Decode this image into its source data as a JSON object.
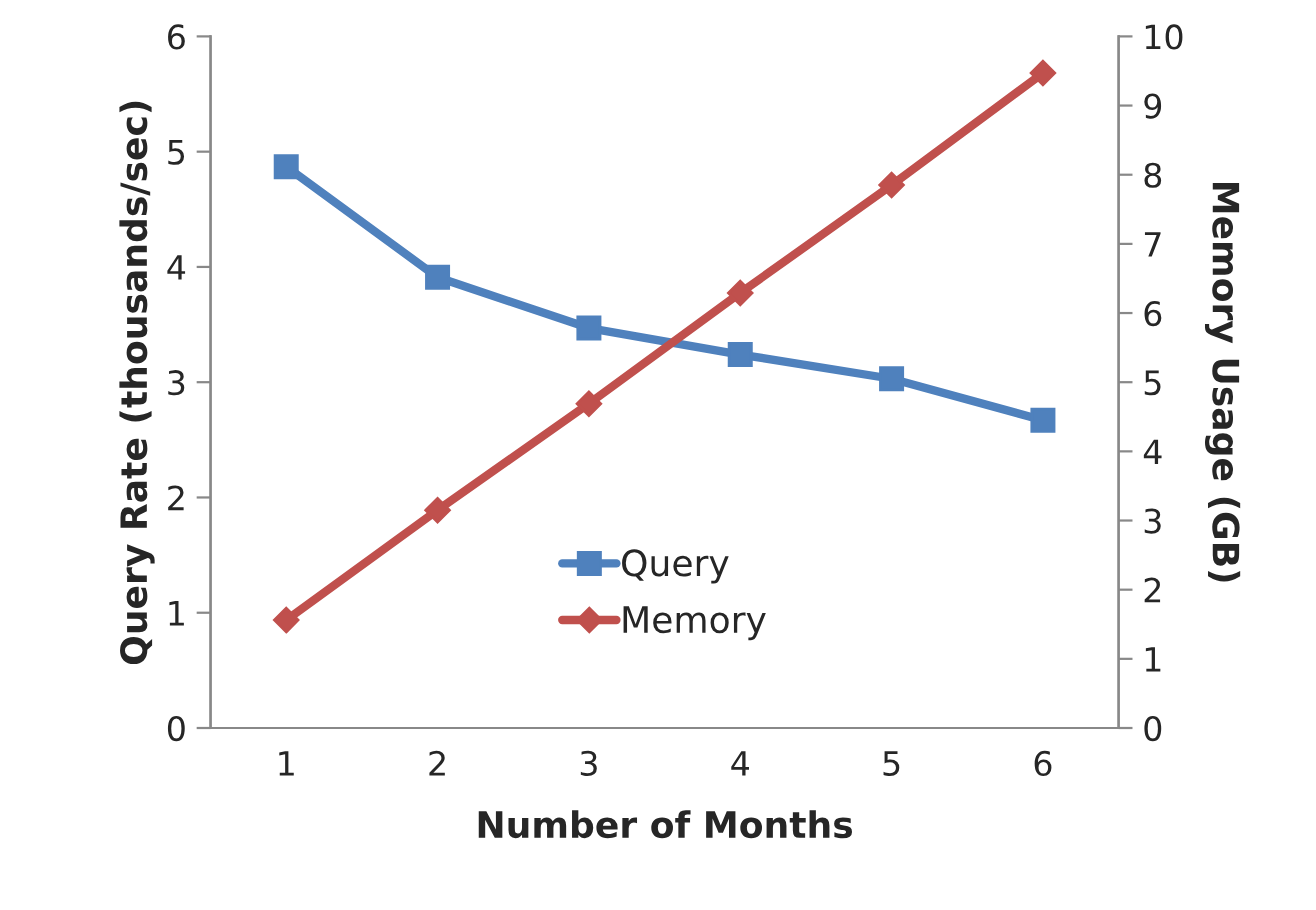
{
  "chart_data": {
    "type": "line",
    "xlabel": "Number of Months",
    "ylabel": "Query Rate (thousands/sec)",
    "y2label": "Memory Usage (GB)",
    "categories": [
      "1",
      "2",
      "3",
      "4",
      "5",
      "6"
    ],
    "series": [
      {
        "name": "Query",
        "color": "#4f81bd",
        "marker": "square",
        "values": [
          4.87,
          3.91,
          3.47,
          3.24,
          3.03,
          2.67
        ]
      },
      {
        "name": "Memory",
        "color": "#c0504d",
        "marker": "diamond",
        "axis": "y2",
        "values": [
          1.56,
          3.15,
          4.69,
          6.29,
          7.85,
          9.47
        ]
      }
    ],
    "ylim": [
      0,
      6
    ],
    "yticks": [
      0,
      1,
      2,
      3,
      4,
      5,
      6
    ],
    "y2lim": [
      0,
      10
    ],
    "y2ticks": [
      0,
      1,
      2,
      3,
      4,
      5,
      6,
      7,
      8,
      9,
      10
    ],
    "grid": false,
    "legend": "bottom",
    "line_style": "solid"
  }
}
